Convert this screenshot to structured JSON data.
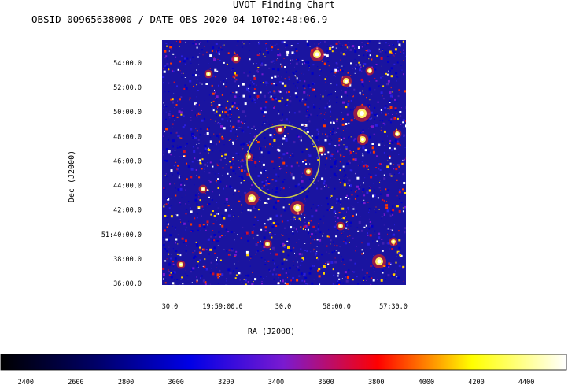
{
  "title": "UVOT Finding Chart",
  "subtitle": "OBSID 00965638000 / DATE-OBS 2020-04-10T02:40:06.9",
  "chart_data": {
    "type": "heatmap",
    "xlabel": "RA (J2000)",
    "ylabel": "Dec (J2000)",
    "x_ticks": [
      "30.0",
      "19:59:00.0",
      "30.0",
      "58:00.0",
      "57:30.0"
    ],
    "y_ticks": [
      "54:00.0",
      "52:00.0",
      "50:00.0",
      "48:00.0",
      "46:00.0",
      "44:00.0",
      "42:00.0",
      "51:40:00.0",
      "38:00.0",
      "36:00.0"
    ],
    "y_values_arcmin": [
      54,
      52,
      50,
      48,
      46,
      44,
      42,
      40,
      38,
      36
    ],
    "colorbar": {
      "min": 2300,
      "max": 4560,
      "ticks": [
        "2400",
        "2600",
        "2800",
        "3000",
        "3200",
        "3400",
        "3600",
        "3800",
        "4000",
        "4200",
        "4400"
      ],
      "tick_values": [
        2400,
        2600,
        2800,
        3000,
        3200,
        3400,
        3600,
        3800,
        4000,
        4200,
        4400
      ],
      "colormap": [
        "#000000",
        "#000066",
        "#0000e6",
        "#7a1ad0",
        "#ff0000",
        "#ffff00",
        "#ffffff"
      ]
    },
    "region_circle": {
      "color": "#c8c84a"
    },
    "background_color": "#1a14a0"
  }
}
